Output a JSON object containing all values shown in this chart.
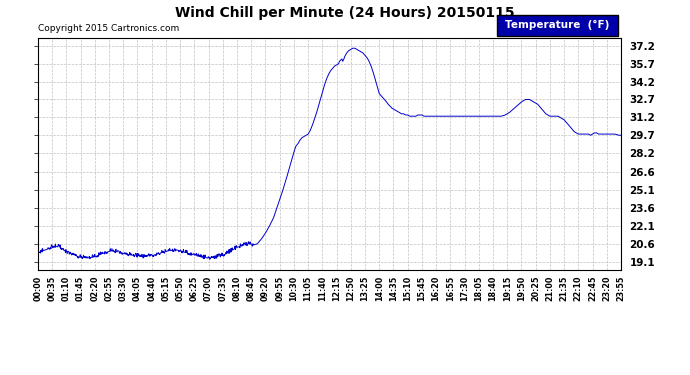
{
  "title": "Wind Chill per Minute (24 Hours) 20150115",
  "copyright": "Copyright 2015 Cartronics.com",
  "legend_label": "Temperature  (°F)",
  "line_color": "#0000cc",
  "bg_color": "#ffffff",
  "plot_bg_color": "#ffffff",
  "grid_color": "#bbbbbb",
  "yticks": [
    19.1,
    20.6,
    22.1,
    23.6,
    25.1,
    26.6,
    28.2,
    29.7,
    31.2,
    32.7,
    34.2,
    35.7,
    37.2
  ],
  "ymin": 18.4,
  "ymax": 37.9,
  "xtick_labels": [
    "00:00",
    "00:35",
    "01:10",
    "01:45",
    "02:20",
    "02:55",
    "03:30",
    "04:05",
    "04:40",
    "05:15",
    "05:50",
    "06:25",
    "07:00",
    "07:35",
    "08:10",
    "08:45",
    "09:20",
    "09:55",
    "10:30",
    "11:05",
    "11:40",
    "12:15",
    "12:50",
    "13:25",
    "14:00",
    "14:35",
    "15:10",
    "15:45",
    "16:20",
    "16:55",
    "17:30",
    "18:05",
    "18:40",
    "19:15",
    "19:50",
    "20:25",
    "21:00",
    "21:35",
    "22:10",
    "22:45",
    "23:20",
    "23:55"
  ]
}
